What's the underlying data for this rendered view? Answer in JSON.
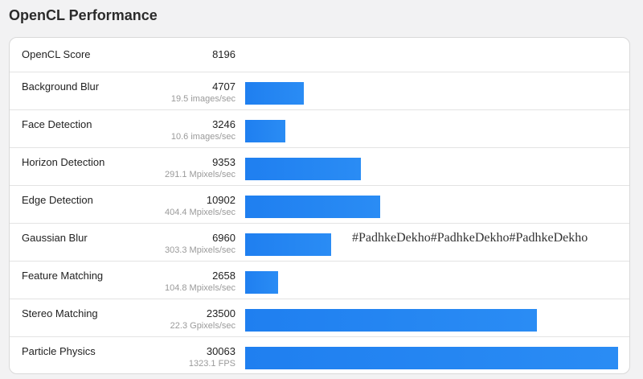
{
  "page": {
    "title": "OpenCL Performance",
    "watermark": "#PadhkeDekho#PadhkeDekho#PadhkeDekho"
  },
  "bar_color": "#2187f2",
  "overall": {
    "label": "OpenCL Score",
    "score": "8196"
  },
  "tests": [
    {
      "label": "Background Blur",
      "score": "4707",
      "score_value": 4707,
      "rate": "19.5 images/sec"
    },
    {
      "label": "Face Detection",
      "score": "3246",
      "score_value": 3246,
      "rate": "10.6 images/sec"
    },
    {
      "label": "Horizon Detection",
      "score": "9353",
      "score_value": 9353,
      "rate": "291.1 Mpixels/sec"
    },
    {
      "label": "Edge Detection",
      "score": "10902",
      "score_value": 10902,
      "rate": "404.4 Mpixels/sec"
    },
    {
      "label": "Gaussian Blur",
      "score": "6960",
      "score_value": 6960,
      "rate": "303.3 Mpixels/sec"
    },
    {
      "label": "Feature Matching",
      "score": "2658",
      "score_value": 2658,
      "rate": "104.8 Mpixels/sec"
    },
    {
      "label": "Stereo Matching",
      "score": "23500",
      "score_value": 23500,
      "rate": "22.3 Gpixels/sec"
    },
    {
      "label": "Particle Physics",
      "score": "30063",
      "score_value": 30063,
      "rate": "1323.1 FPS"
    }
  ]
}
